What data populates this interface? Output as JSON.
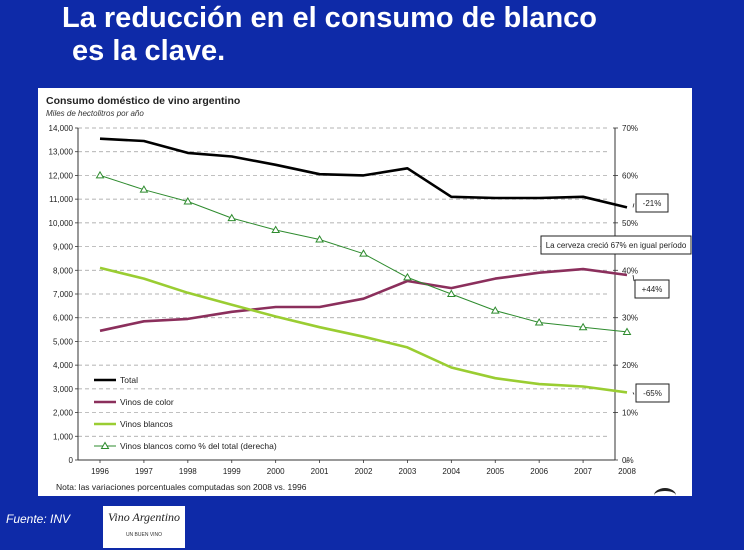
{
  "slide": {
    "title_line1": "La reducción en el consumo de blanco",
    "title_line2": "es la clave.",
    "source": "Fuente: INV",
    "logo_text": "Vino Argentino",
    "logo_subtext": "UN BUEN VINO"
  },
  "chart_data": {
    "type": "line",
    "title": "Consumo doméstico de vino argentino",
    "subtitle": "Miles de hectolitros por año",
    "note": "Nota: las variaciones porcentuales computadas son 2008 vs. 1996",
    "categories": [
      "1996",
      "1997",
      "1998",
      "1999",
      "2000",
      "2001",
      "2002",
      "2003",
      "2004",
      "2005",
      "2006",
      "2007",
      "2008"
    ],
    "y_left": {
      "ylim": [
        0,
        14000
      ],
      "ticks": [
        "0",
        "1,000",
        "2,000",
        "3,000",
        "4,000",
        "5,000",
        "6,000",
        "7,000",
        "8,000",
        "9,000",
        "10,000",
        "11,000",
        "12,000",
        "13,000",
        "14,000"
      ]
    },
    "y_right": {
      "ylim": [
        0,
        70
      ],
      "ticks": [
        "0%",
        "10%",
        "20%",
        "30%",
        "40%",
        "50%",
        "60%",
        "70%"
      ]
    },
    "grid": true,
    "legend_position": "bottom-left",
    "series": [
      {
        "name": "Total",
        "axis": "left",
        "color": "#000000",
        "marker": "none",
        "values": [
          13550,
          13450,
          12950,
          12800,
          12450,
          12050,
          12000,
          12300,
          11100,
          11050,
          11050,
          11100,
          10650
        ]
      },
      {
        "name": "Vinos de color",
        "axis": "left",
        "color": "#8b2f5c",
        "marker": "none",
        "values": [
          5450,
          5850,
          5950,
          6250,
          6450,
          6450,
          6800,
          7550,
          7250,
          7650,
          7900,
          8050,
          7800
        ]
      },
      {
        "name": "Vinos blancos",
        "axis": "left",
        "color": "#9acd32",
        "marker": "none",
        "values": [
          8100,
          7650,
          7050,
          6550,
          6050,
          5600,
          5200,
          4750,
          3900,
          3450,
          3200,
          3100,
          2850
        ]
      },
      {
        "name": "Vinos blancos como % del total (derecha)",
        "axis": "right",
        "color": "#2e8b2e",
        "marker": "triangle",
        "values": [
          60,
          57,
          54.5,
          51,
          48.5,
          46.5,
          43.5,
          38.5,
          35,
          31.5,
          29,
          28,
          27
        ]
      }
    ],
    "annotations": [
      {
        "text": "-21%",
        "series": "Total"
      },
      {
        "text": "La cerveza creció 67% en igual período",
        "series": "Total"
      },
      {
        "text": "+44%",
        "series": "Vinos de color"
      },
      {
        "text": "-65%",
        "series": "Vinos blancos"
      }
    ]
  }
}
